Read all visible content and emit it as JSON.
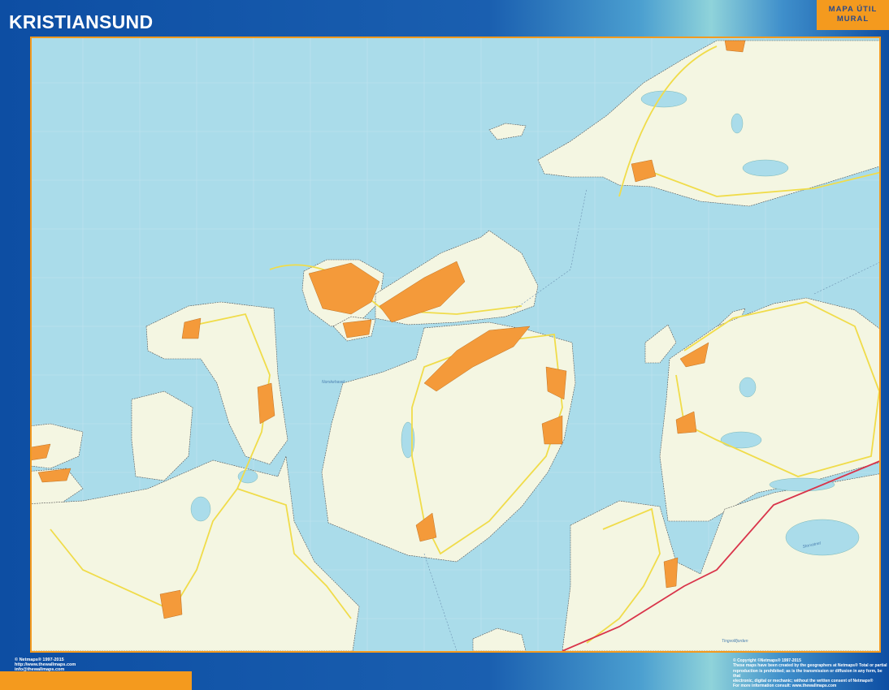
{
  "header": {
    "title": "KRISTIANSUND"
  },
  "badge": {
    "line1": "MAPA ÚTIL",
    "line2": "MURAL"
  },
  "footer_left": {
    "copyright": "© Netmaps® 1997-2015",
    "website": "http://www.thewallmaps.com",
    "email": "info@thewallmaps.com"
  },
  "footer_right": {
    "line1": "© Copyright ©Netmaps® 1997-2015",
    "line2": "These maps have been created by the geographers at Netmaps® Total or partial",
    "line3": "reproduction is prohibited; as is the transmission or diffusion in any form, be that",
    "line4": "electronic, digital or mechanic; without the written consent of Netmaps®",
    "line5": "For more information consult: www.thewallmaps.com"
  },
  "map": {
    "labels": {
      "sea": "Norskehavet",
      "fjord": "Tingvollfjorden",
      "lake": "Storvatnet"
    },
    "colors": {
      "sea": "#aadcea",
      "land": "#f4f6e2",
      "town": "#f49a3a",
      "road_main": "#f0dc4a",
      "road_major": "#d9344a",
      "frame": "#f49a1e",
      "header": "#0d4ea3"
    }
  }
}
